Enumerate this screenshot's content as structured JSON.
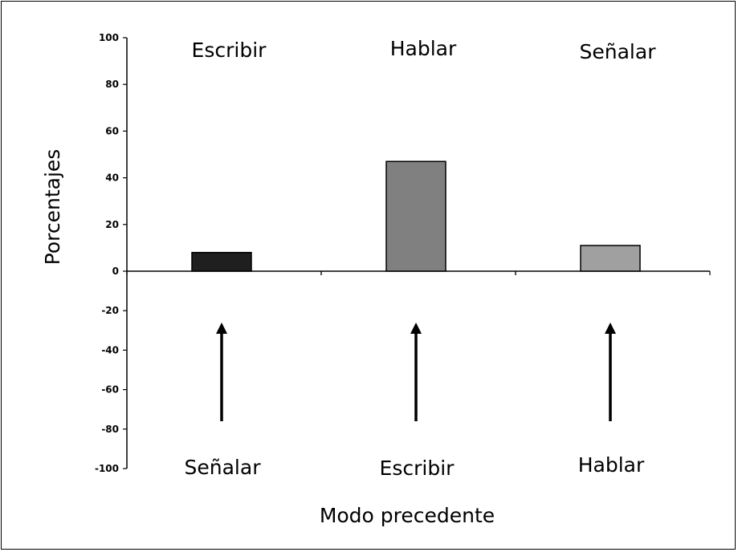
{
  "chart_data": {
    "type": "bar",
    "categories": [
      "Escribir",
      "Hablar",
      "Señalar"
    ],
    "preceding_modes": [
      "Señalar",
      "Escribir",
      "Hablar"
    ],
    "values": [
      8,
      47,
      11
    ],
    "bar_colors": [
      "#1f1f1f",
      "#808080",
      "#a0a0a0"
    ],
    "ylabel": "Porcentajes",
    "xlabel": "Modo precedente",
    "ylim": [
      -100,
      100
    ],
    "yticks": [
      100,
      80,
      60,
      40,
      20,
      0,
      -20,
      -40,
      -60,
      -80,
      -100
    ],
    "arrows": "upward arrows from each preceding mode toward its category",
    "grid": false
  }
}
